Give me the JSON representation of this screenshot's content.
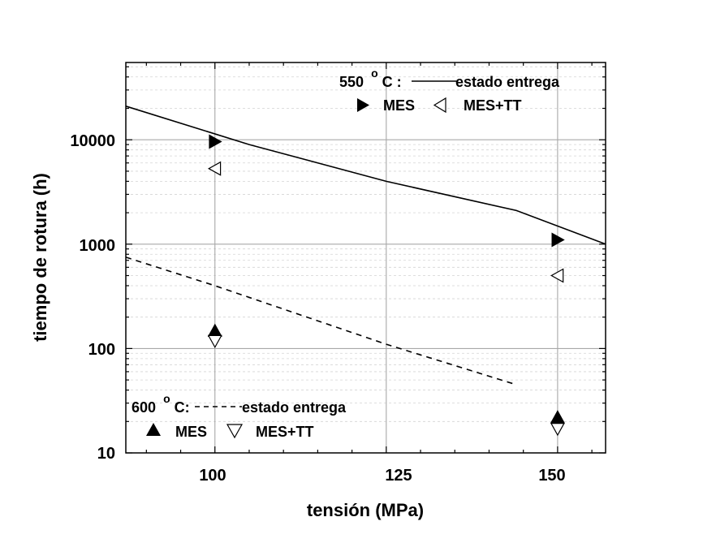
{
  "chart_data": {
    "type": "line",
    "title": "",
    "xlabel": "tensión (MPa)",
    "ylabel": "tiempo de rotura (h)",
    "xlim": [
      87,
      157
    ],
    "ylim": [
      10,
      55000
    ],
    "yscale": "log",
    "x_ticks": [
      100,
      125,
      150
    ],
    "x_tick_labels": [
      "100",
      "125",
      "150"
    ],
    "y_ticks": [
      10,
      100,
      1000,
      10000
    ],
    "y_tick_labels": [
      "10",
      "100",
      "1000",
      "10000"
    ],
    "grid": true,
    "series": [
      {
        "name": "550 °C estado entrega",
        "style": "solid-line",
        "x": [
          87,
          105,
          125,
          144,
          157
        ],
        "y": [
          21000,
          9000,
          4000,
          2100,
          1000
        ]
      },
      {
        "name": "600 °C estado entrega",
        "style": "dashed-line",
        "x": [
          87,
          100,
          125,
          144
        ],
        "y": [
          750,
          400,
          110,
          45
        ]
      },
      {
        "name": "550 °C MES",
        "style": "marker-right-filled",
        "x": [
          100,
          150
        ],
        "y": [
          9600,
          1100
        ]
      },
      {
        "name": "550 °C MES+TT",
        "style": "marker-left-open",
        "x": [
          100,
          150
        ],
        "y": [
          5300,
          500
        ]
      },
      {
        "name": "600 °C MES",
        "style": "marker-up-filled",
        "x": [
          100,
          150
        ],
        "y": [
          148,
          22
        ]
      },
      {
        "name": "600 °C MES+TT",
        "style": "marker-down-open",
        "x": [
          100,
          150
        ],
        "y": [
          118,
          17
        ]
      }
    ],
    "legend_top": {
      "temp_value": "550",
      "temp_sup": "o",
      "temp_unit": "C :",
      "line_label": "estado entrega",
      "mes_label": "MES",
      "mestt_label": "MES+TT"
    },
    "legend_bottom": {
      "temp_value": "600",
      "temp_sup": "o",
      "temp_unit": "C:",
      "line_label": "estado entrega",
      "mes_label": "MES",
      "mestt_label": "MES+TT"
    }
  }
}
